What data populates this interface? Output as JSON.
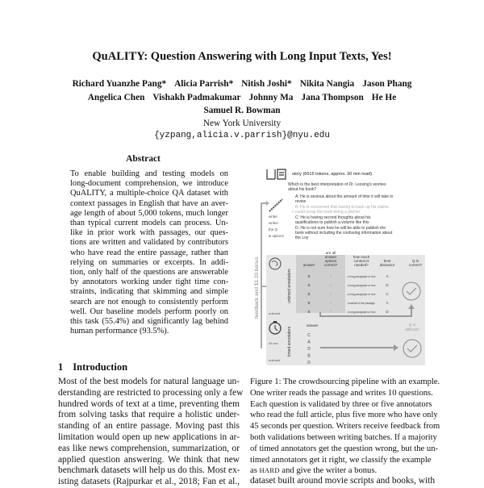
{
  "title": "QuALITY: Question Answering with Long Input Texts, Yes!",
  "authors_row1": [
    "Richard Yuanzhe Pang*",
    "Alicia Parrish*",
    "Nitish Joshi*",
    "Nikita Nangia",
    "Jason Phang"
  ],
  "authors_row2": [
    "Angelica Chen",
    "Vishakh Padmakumar",
    "Johnny Ma",
    "Jana Thompson",
    "He He"
  ],
  "authors_row3": [
    "Samuel R. Bowman"
  ],
  "affiliation": "New York University",
  "email": "{yzpang,alicia.v.parrish}@nyu.edu",
  "abstract": {
    "heading": "Abstract",
    "lines": [
      "To enable building and testing models on",
      "long-document comprehension, we introduce",
      "QuALITY, a multiple-choice QA dataset with",
      "context passages in English that have an aver-",
      "age length of about 5,000 tokens, much longer",
      "than typical current models can process. Un-",
      "like in prior work with passages, our ques-",
      "tions are written and validated by contributors",
      "who have read the entire passage, rather than",
      "relying on summaries or excerpts. In addi-",
      "tion, only half of the questions are answerable",
      "by annotators working under tight time con-",
      "straints, indicating that skimming and simple",
      "search are not enough to consistently perform",
      "well. Our baseline models perform poorly on",
      "this task (55.4%) and significantly lag behind",
      "human performance (93.5%)."
    ]
  },
  "intro": {
    "number": "1",
    "heading": "Introduction",
    "lines": [
      "Most of the best models for natural language un-",
      "derstanding are restricted to processing only a few",
      "hundred words of text at a time, preventing them",
      "from solving tasks that require a holistic under-",
      "standing of an entire passage. Moving past this",
      "limitation would open up new applications in ar-",
      "eas like news comprehension, summarization, or",
      "applied question answering. We think that new",
      "benchmark datasets will help us do this. Most ex-",
      "isting datasets (Rajpurkar et al., 2018; Fan et al.,"
    ]
  },
  "figure": {
    "story": "story (6615 tokens, approx. 30 min read)",
    "question": [
      "Which is the best interpretation of Dr. Lessing's worries",
      "about his book?"
    ],
    "options": [
      [
        "A: He is anxious about the amount of time it will take to",
        "revise"
      ],
      [
        "B: He is concerned that having to back up his claims",
        "could scrap the book being a pitcher"
      ],
      [
        "C: He is having second thoughts about his",
        "qualifications to publish a volume like this"
      ],
      [
        "D: He is not sure how he will be able to publish the",
        "book without including the confusing information about",
        "the Loy"
      ]
    ],
    "writer_label": [
      "writer",
      "writes",
      "the Q",
      "& options"
    ],
    "writer_time": "",
    "feedback": "feedback and $1.20 bonus",
    "untimed_label": "untimed annotators",
    "untimed_time": "untimed",
    "headers": [
      "answer",
      "are all answer options correct?",
      "how much context is needed?",
      "best distractor",
      "Q is correct?"
    ],
    "untimed_rows": [
      [
        "B",
        "✓",
        "a long paragraph or two",
        "A"
      ],
      [
        "B",
        "✓",
        "a long paragraph or two",
        "D"
      ],
      [
        "B",
        "✓",
        "a long paragraph or two",
        "C"
      ],
      [
        "B",
        "✓",
        "most/all of the passage",
        "A"
      ],
      [
        "B",
        "✓",
        "a long paragraph or two",
        "D"
      ]
    ],
    "timed_label": "timed annotators",
    "timed_time": "45 sec",
    "timed_time2": "untimed",
    "timed_header": "answer",
    "timed_answers": [
      "C",
      "A",
      "D",
      "B",
      "D"
    ],
    "difficult_label": "Q is difficult?",
    "accent_gray": "#e6e6e6"
  },
  "caption": {
    "lines": [
      "Figure 1: The crowdsourcing pipeline with an example.",
      "One writer reads the passage and writes 10 questions.",
      "Each question is validated by three or five annotators",
      "who read the full article, plus five more who have only",
      "45 seconds per question. Writers receive feedback from",
      "both validations between writing batches. If a majority",
      "of timed annotators get the question wrong, but the un-",
      "timed annotators get it right, we classify the example"
    ],
    "last_pre": "as ",
    "last_sc": "HARD",
    "last_post": " and give the writer a bonus."
  },
  "after_caption": "dataset built around movie scripts and books, with"
}
